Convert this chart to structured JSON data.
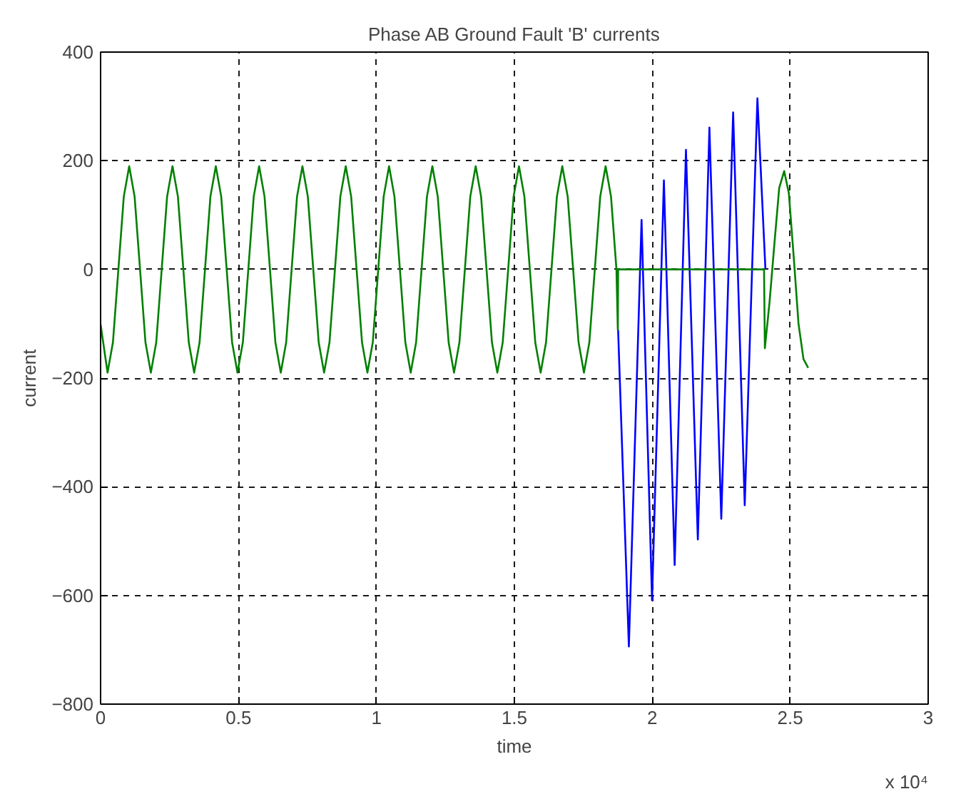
{
  "chart_data": {
    "type": "line",
    "title": "Phase AB Ground Fault 'B' currents",
    "xlabel": "time",
    "ylabel": "current",
    "annotations": [
      "x 10⁴"
    ],
    "xlim": [
      0,
      3
    ],
    "ylim": [
      -800,
      400
    ],
    "xticks": [
      0,
      0.5,
      1,
      1.5,
      2,
      2.5,
      3
    ],
    "yticks": [
      -800,
      -600,
      -400,
      -200,
      0,
      200,
      400
    ],
    "grid": true,
    "line_style": "solid",
    "series": [
      {
        "color": "#0000ff",
        "x": [
          1.876,
          1.915,
          1.961,
          1.999,
          2.042,
          2.081,
          2.122,
          2.165,
          2.207,
          2.25,
          2.293,
          2.335,
          2.381,
          2.41
        ],
        "values": [
          -111,
          -694,
          91,
          -609,
          164,
          -544,
          220,
          -497,
          261,
          -459,
          289,
          -434,
          315,
          0
        ]
      },
      {
        "color": "#008000",
        "x": [
          0,
          0.0252,
          0.0448,
          0.0645,
          0.0841,
          0.1037,
          0.1233,
          0.143,
          0.1626,
          0.1822,
          0.2018,
          0.2215,
          0.2411,
          0.2607,
          0.2803,
          0.3,
          0.3196,
          0.3392,
          0.3588,
          0.3785,
          0.3981,
          0.4177,
          0.4373,
          0.457,
          0.4766,
          0.4962,
          0.5158,
          0.5355,
          0.5551,
          0.5747,
          0.5943,
          0.614,
          0.6336,
          0.6532,
          0.6728,
          0.6925,
          0.7121,
          0.7317,
          0.7513,
          0.771,
          0.7906,
          0.8102,
          0.8298,
          0.8495,
          0.8691,
          0.8887,
          0.9083,
          0.928,
          0.9476,
          0.9672,
          0.9868,
          1.0065,
          1.0261,
          1.0457,
          1.0653,
          1.085,
          1.1046,
          1.1242,
          1.1438,
          1.1635,
          1.1831,
          1.2027,
          1.2223,
          1.242,
          1.2616,
          1.2812,
          1.3008,
          1.3205,
          1.3401,
          1.3597,
          1.3793,
          1.399,
          1.4186,
          1.4382,
          1.4578,
          1.4775,
          1.4971,
          1.5167,
          1.5363,
          1.556,
          1.5756,
          1.5952,
          1.6148,
          1.6345,
          1.6541,
          1.6737,
          1.6933,
          1.713,
          1.7326,
          1.7522,
          1.7718,
          1.7915,
          1.8111,
          1.8307,
          1.8503,
          1.87,
          1.875,
          1.876,
          2.405,
          2.408,
          2.425,
          2.443,
          2.46,
          2.478,
          2.495,
          2.513,
          2.53,
          2.548,
          2.565
        ],
        "values": [
          -101,
          -190,
          -134,
          0,
          134,
          190,
          134,
          0,
          -134,
          -190,
          -134,
          0,
          134,
          190,
          134,
          0,
          -134,
          -190,
          -134,
          0,
          134,
          190,
          134,
          0,
          -134,
          -190,
          -134,
          0,
          134,
          190,
          134,
          0,
          -134,
          -190,
          -134,
          0,
          134,
          190,
          134,
          0,
          -134,
          -190,
          -134,
          0,
          134,
          190,
          134,
          0,
          -134,
          -190,
          -134,
          0,
          134,
          190,
          134,
          0,
          -134,
          -190,
          -134,
          0,
          134,
          190,
          134,
          0,
          -134,
          -190,
          -134,
          0,
          134,
          190,
          134,
          0,
          -134,
          -190,
          -134,
          0,
          134,
          190,
          134,
          0,
          -134,
          -190,
          -134,
          0,
          134,
          190,
          134,
          0,
          -134,
          -190,
          -134,
          0,
          134,
          190,
          134,
          0,
          -111,
          0,
          0,
          -145,
          -60,
          50,
          150,
          181,
          140,
          20,
          -100,
          -165,
          -181
        ]
      }
    ]
  }
}
